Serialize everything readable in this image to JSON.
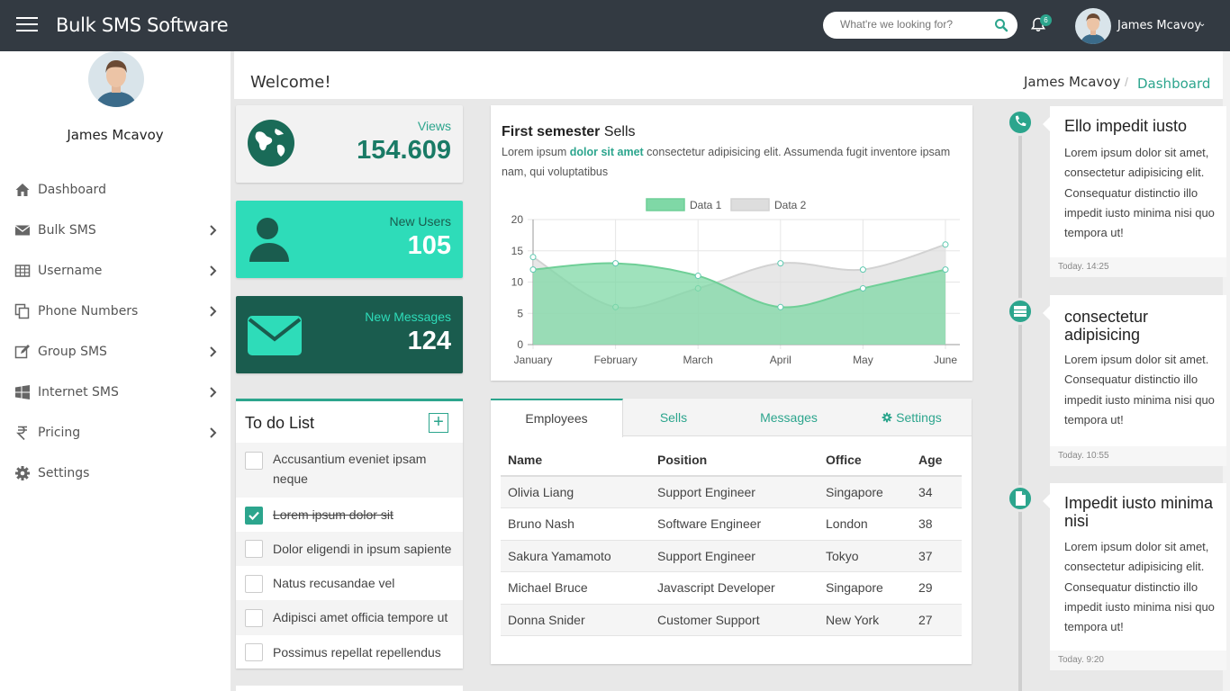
{
  "app": {
    "title": "Bulk SMS Software"
  },
  "topbar": {
    "search_placeholder": "What're we looking for?",
    "notification_count": "6",
    "user_name": "James Mcavoy",
    "caret": "⌄"
  },
  "sidebar": {
    "user_name": "James Mcavoy",
    "items": [
      {
        "label": "Dashboard",
        "icon": "home-icon"
      },
      {
        "label": "Bulk SMS",
        "icon": "envelope-icon"
      },
      {
        "label": "Username",
        "icon": "table-icon"
      },
      {
        "label": "Phone Numbers",
        "icon": "copy-icon"
      },
      {
        "label": "Group SMS",
        "icon": "edit-icon"
      },
      {
        "label": "Internet SMS",
        "icon": "windows-icon"
      },
      {
        "label": "Pricing",
        "icon": "rupee-icon"
      },
      {
        "label": "Settings",
        "icon": "gear-icon"
      }
    ]
  },
  "header": {
    "welcome": "Welcome!",
    "breadcrumb_user": "James Mcavoy",
    "breadcrumb_sep": "/",
    "breadcrumb_page": "Dashboard"
  },
  "stats": {
    "views": {
      "label": "Views",
      "value": "154.609"
    },
    "new_users": {
      "label": "New Users",
      "value": "105"
    },
    "new_messages": {
      "label": "New Messages",
      "value": "124"
    }
  },
  "colors": {
    "accent": "#2ca58d",
    "topbar": "#333a42",
    "teal_light": "#2edcb9",
    "teal_dark": "#1a5c4e"
  },
  "todo": {
    "title": "To do List",
    "add_label": "+",
    "items": [
      {
        "text": "Accusantium eveniet ipsam neque",
        "done": false
      },
      {
        "text": "Lorem ipsum dolor sit",
        "done": true
      },
      {
        "text": "Dolor eligendi in ipsum sapiente",
        "done": false
      },
      {
        "text": "Natus recusandae vel",
        "done": false
      },
      {
        "text": "Adipisci amet officia tempore ut",
        "done": false
      },
      {
        "text": "Possimus repellat repellendus",
        "done": false
      }
    ]
  },
  "chart_card": {
    "title_bold": "First semester",
    "title_rest": " Sells",
    "desc_pre": "Lorem ipsum ",
    "desc_highlight": "dolor sit amet",
    "desc_post": " consectetur adipisicing elit. Assumenda fugit inventore ipsam nam, qui voluptatibus"
  },
  "chart_data": {
    "type": "area",
    "x": [
      "January",
      "February",
      "March",
      "April",
      "May",
      "June"
    ],
    "series": [
      {
        "name": "Data 1",
        "values": [
          12,
          13,
          11,
          6,
          9,
          12
        ],
        "color": "#7fd8a6"
      },
      {
        "name": "Data 2",
        "values": [
          14,
          6,
          9,
          13,
          12,
          16
        ],
        "color": "#dddddd"
      }
    ],
    "ylim": [
      0,
      20
    ],
    "yticks": [
      "0",
      "5",
      "10",
      "15",
      "20"
    ],
    "legend": "top",
    "grid": true
  },
  "tabs": [
    {
      "label": "Employees",
      "active": true
    },
    {
      "label": "Sells",
      "active": false
    },
    {
      "label": "Messages",
      "active": false
    },
    {
      "label": "Settings",
      "active": false
    }
  ],
  "table": {
    "columns": [
      "Name",
      "Position",
      "Office",
      "Age"
    ],
    "rows": [
      [
        "Olivia Liang",
        "Support Engineer",
        "Singapore",
        "34"
      ],
      [
        "Bruno Nash",
        "Software Engineer",
        "London",
        "38"
      ],
      [
        "Sakura Yamamoto",
        "Support Engineer",
        "Tokyo",
        "37"
      ],
      [
        "Michael Bruce",
        "Javascript Developer",
        "Singapore",
        "29"
      ],
      [
        "Donna Snider",
        "Customer Support",
        "New York",
        "27"
      ]
    ]
  },
  "timeline": [
    {
      "title": "Ello impedit iusto",
      "body": "Lorem ipsum dolor sit amet, consectetur adipisicing elit. Consequatur distinctio illo impedit iusto minima nisi quo tempora ut!",
      "time": "Today. 14:25",
      "icon": "phone-icon"
    },
    {
      "title": "consectetur adipisicing",
      "body": "Lorem ipsum dolor sit amet. Consequatur distinctio illo impedit iusto minima nisi quo tempora ut!",
      "time": "Today. 10:55",
      "icon": "server-icon"
    },
    {
      "title": "Impedit iusto minima nisi",
      "body": "Lorem ipsum dolor sit amet, consectetur adipisicing elit. Consequatur distinctio illo impedit iusto minima nisi quo tempora ut!",
      "time": "Today. 9:20",
      "icon": "file-icon"
    }
  ]
}
